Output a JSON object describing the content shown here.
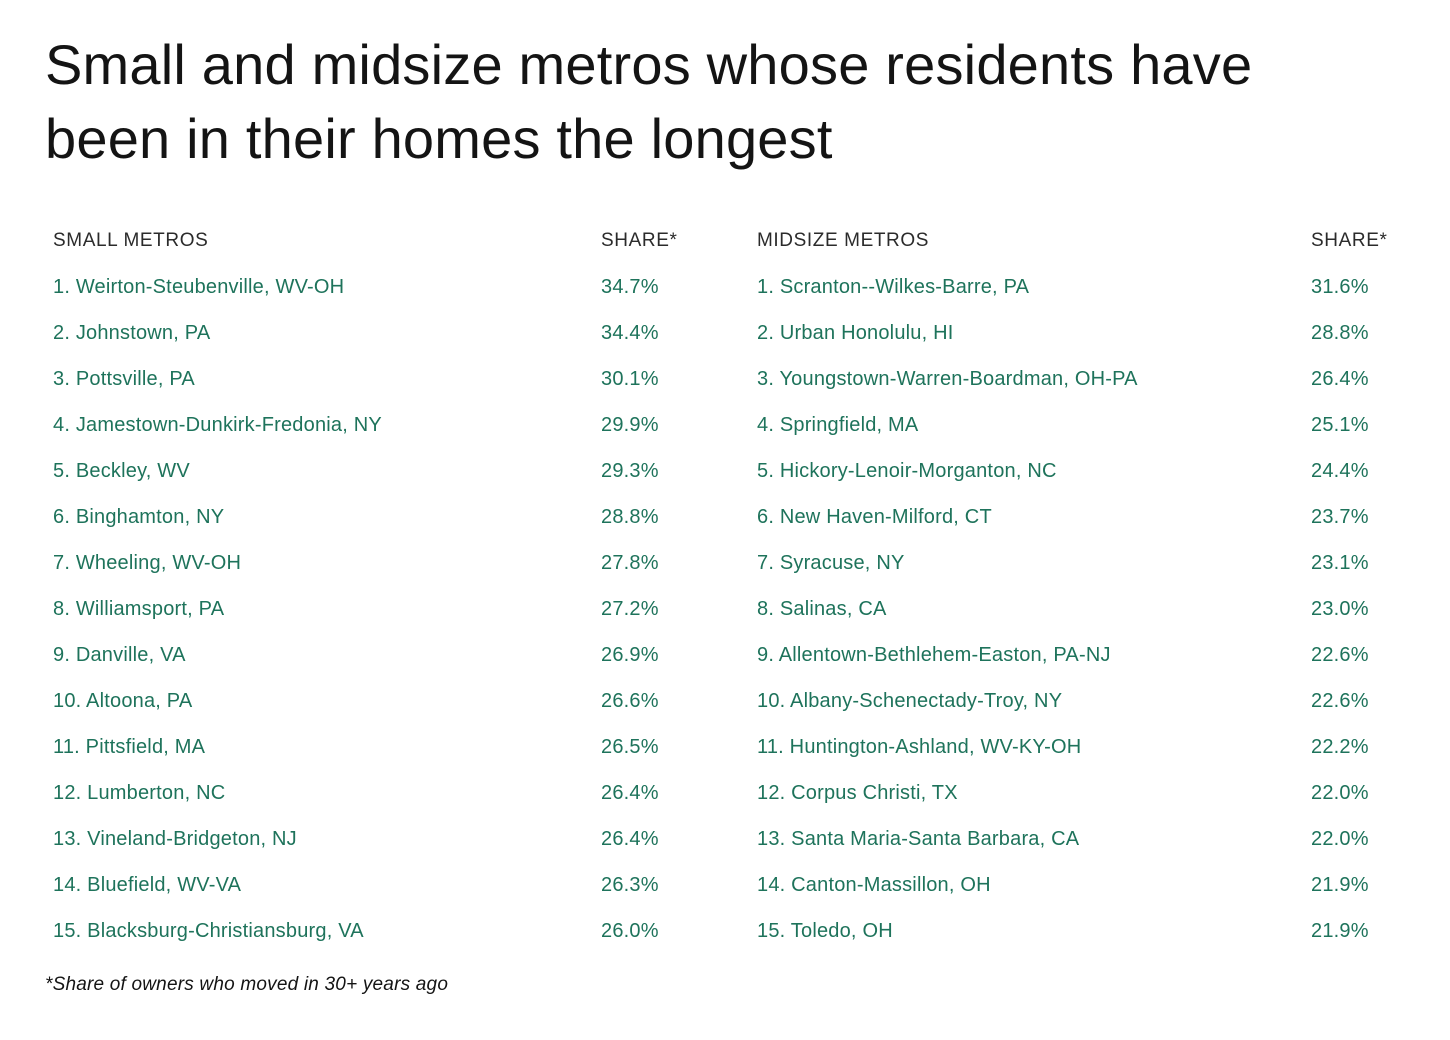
{
  "title": "Small and midsize metros whose residents have been in their homes the longest",
  "footnote": "*Share of owners who moved in 30+ years ago",
  "colors": {
    "metro_text_green": "#1e735b",
    "header_text": "#2b2b2b",
    "title_text": "#141414",
    "background": "#ffffff"
  },
  "chart_data": {
    "type": "table",
    "title": "Small and midsize metros whose residents have been in their homes the longest",
    "footnote": "*Share of owners who moved in 30+ years ago",
    "tables": [
      {
        "name_header": "SMALL METROS",
        "share_header": "SHARE*",
        "rows": [
          {
            "label": "1. Weirton-Steubenville, WV-OH",
            "share": "34.7%"
          },
          {
            "label": "2. Johnstown, PA",
            "share": "34.4%"
          },
          {
            "label": "3. Pottsville, PA",
            "share": "30.1%"
          },
          {
            "label": "4. Jamestown-Dunkirk-Fredonia, NY",
            "share": "29.9%"
          },
          {
            "label": "5. Beckley, WV",
            "share": "29.3%"
          },
          {
            "label": "6. Binghamton, NY",
            "share": "28.8%"
          },
          {
            "label": "7. Wheeling, WV-OH",
            "share": "27.8%"
          },
          {
            "label": "8. Williamsport, PA",
            "share": "27.2%"
          },
          {
            "label": "9. Danville, VA",
            "share": "26.9%"
          },
          {
            "label": "10. Altoona, PA",
            "share": "26.6%"
          },
          {
            "label": "11. Pittsfield, MA",
            "share": "26.5%"
          },
          {
            "label": "12. Lumberton, NC",
            "share": "26.4%"
          },
          {
            "label": "13. Vineland-Bridgeton, NJ",
            "share": "26.4%"
          },
          {
            "label": "14. Bluefield, WV-VA",
            "share": "26.3%"
          },
          {
            "label": "15. Blacksburg-Christiansburg, VA",
            "share": "26.0%"
          }
        ]
      },
      {
        "name_header": "MIDSIZE METROS",
        "share_header": "SHARE*",
        "rows": [
          {
            "label": "1. Scranton--Wilkes-Barre, PA",
            "share": "31.6%"
          },
          {
            "label": "2. Urban Honolulu, HI",
            "share": "28.8%"
          },
          {
            "label": "3. Youngstown-Warren-Boardman, OH-PA",
            "share": "26.4%"
          },
          {
            "label": "4. Springfield, MA",
            "share": "25.1%"
          },
          {
            "label": "5. Hickory-Lenoir-Morganton, NC",
            "share": "24.4%"
          },
          {
            "label": "6. New Haven-Milford, CT",
            "share": "23.7%"
          },
          {
            "label": "7. Syracuse, NY",
            "share": "23.1%"
          },
          {
            "label": "8. Salinas, CA",
            "share": "23.0%"
          },
          {
            "label": "9. Allentown-Bethlehem-Easton, PA-NJ",
            "share": "22.6%"
          },
          {
            "label": "10. Albany-Schenectady-Troy, NY",
            "share": "22.6%"
          },
          {
            "label": "11. Huntington-Ashland, WV-KY-OH",
            "share": "22.2%"
          },
          {
            "label": "12. Corpus Christi, TX",
            "share": "22.0%"
          },
          {
            "label": "13. Santa Maria-Santa Barbara, CA",
            "share": "22.0%"
          },
          {
            "label": "14. Canton-Massillon, OH",
            "share": "21.9%"
          },
          {
            "label": "15. Toledo, OH",
            "share": "21.9%"
          }
        ]
      }
    ]
  }
}
